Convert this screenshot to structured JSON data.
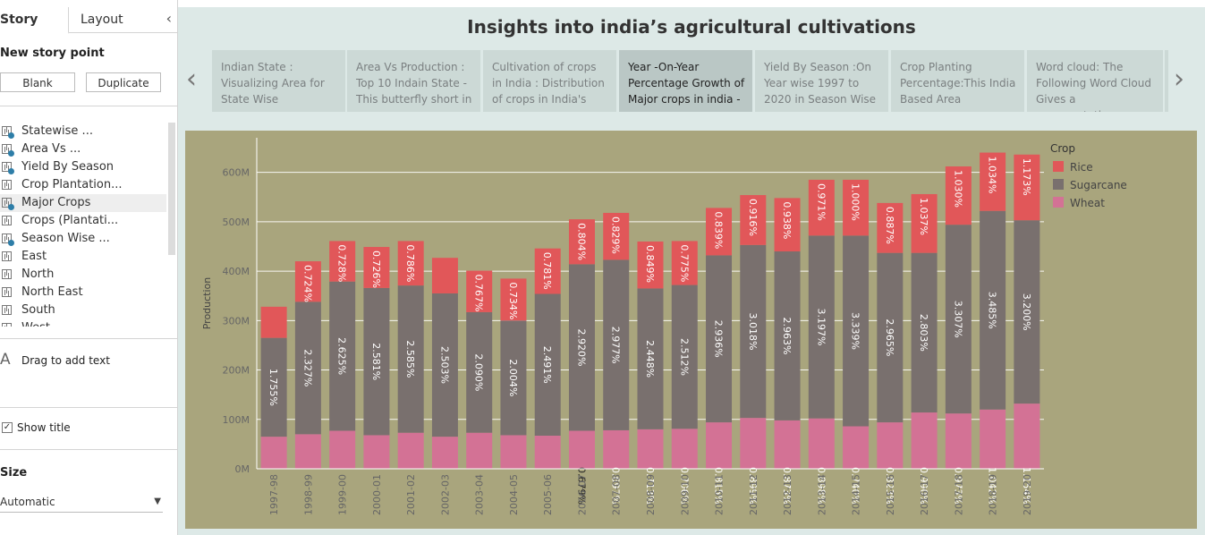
{
  "left_pane": {
    "tabs": {
      "story": "Story",
      "layout": "Layout"
    },
    "new_story_point": "New story point",
    "blank_button": "Blank",
    "duplicate_button": "Duplicate",
    "sheets": [
      {
        "label": "Statewise ...",
        "checked": true
      },
      {
        "label": "Area Vs ...",
        "checked": true
      },
      {
        "label": "Yield By Season",
        "checked": true
      },
      {
        "label": "Crop Plantation...",
        "checked": false
      },
      {
        "label": "Major Crops",
        "checked": true,
        "active": true
      },
      {
        "label": "Crops (Plantati...",
        "checked": false
      },
      {
        "label": "Season Wise ...",
        "checked": true
      },
      {
        "label": "East",
        "checked": false
      },
      {
        "label": "North",
        "checked": false
      },
      {
        "label": "North East",
        "checked": false
      },
      {
        "label": "South",
        "checked": false
      },
      {
        "label": "West",
        "checked": false
      }
    ],
    "drag_text": "Drag to add text",
    "text_icon": "A",
    "show_title": "Show title",
    "size_label": "Size",
    "size_value": "Automatic"
  },
  "story": {
    "title": "Insights into india’s agricultural cultivations",
    "story_points": [
      {
        "text": "Indian State : Visualizing Area for State Wise"
      },
      {
        "text": "Area Vs Production : Top 10 Indain State - This butterfly short in"
      },
      {
        "text": "Cultivation of crops in India : Distribution of crops in India's"
      },
      {
        "text": "Year -On-Year Percentage Growth of Major crops in india -",
        "active": true
      },
      {
        "text": "Yield By Season :On Year wise 1997 to 2020 in Season Wise"
      },
      {
        "text": "Crop Planting Percentage:This India Based Area"
      },
      {
        "text": "Word cloud: The Following Word Cloud Gives a representation"
      }
    ]
  },
  "colors": {
    "rice": "#e15759",
    "sugarcane": "#79706e",
    "wheat": "#d37295",
    "chart_bg": "#a9a57d"
  },
  "chart_data": {
    "type": "bar",
    "stacked": true,
    "ylabel": "Production",
    "ylim": [
      0,
      670
    ],
    "yticks": [
      0,
      100,
      200,
      300,
      400,
      500,
      600
    ],
    "ytick_labels": [
      "0M",
      "100M",
      "200M",
      "300M",
      "400M",
      "500M",
      "600M"
    ],
    "legend_title": "Crop",
    "legend_position": "top-right",
    "categories": [
      "1997-98",
      "1998-99",
      "1999-00",
      "2000-01",
      "2001-02",
      "2002-03",
      "2003-04",
      "2004-05",
      "2005-06",
      "2006-07",
      "2007-08",
      "2008-09",
      "2009-10",
      "2010-11",
      "2011-12",
      "2012-13",
      "2013-14",
      "2014-15",
      "2015-16",
      "2016-17",
      "2017-18",
      "2018-19",
      "2019-20"
    ],
    "series": [
      {
        "name": "Wheat",
        "values": [
          65,
          70,
          77,
          68,
          73,
          65,
          73,
          68,
          67,
          77,
          78,
          80,
          81,
          94,
          103,
          98,
          102,
          86,
          94,
          114,
          112,
          120,
          132
        ],
        "labels": [
          "",
          "",
          "",
          "",
          "",
          "",
          "",
          "",
          "",
          "0.679%",
          "0.697%",
          "0.713%",
          "0.706%",
          "0.815%",
          "0.899%",
          "0.873%",
          "0.898%",
          "0.740%",
          "0.823%",
          "0.990%",
          "0.973%",
          "1.042%",
          "1.154%"
        ]
      },
      {
        "name": "Sugarcane",
        "values": [
          200,
          268,
          302,
          298,
          298,
          290,
          244,
          232,
          287,
          337,
          345,
          285,
          291,
          338,
          350,
          342,
          370,
          386,
          343,
          323,
          382,
          402,
          371
        ],
        "labels": [
          "1.755%",
          "2.327%",
          "2.625%",
          "2.581%",
          "2.585%",
          "2.503%",
          "2.090%",
          "2.004%",
          "2.491%",
          "2.920%",
          "2.977%",
          "2.448%",
          "2.512%",
          "2.936%",
          "3.018%",
          "2.963%",
          "3.197%",
          "3.339%",
          "2.965%",
          "2.803%",
          "3.307%",
          "3.485%",
          "3.200%"
        ]
      },
      {
        "name": "Rice",
        "values": [
          63,
          82,
          82,
          83,
          90,
          72,
          84,
          85,
          92,
          91,
          95,
          95,
          89,
          96,
          101,
          108,
          113,
          113,
          101,
          119,
          118,
          118,
          133
        ],
        "labels": [
          "",
          "0.724%",
          "0.728%",
          "0.726%",
          "0.786%",
          "",
          "0.767%",
          "0.734%",
          "0.781%",
          "0.804%",
          "0.829%",
          "0.849%",
          "0.775%",
          "0.839%",
          "0.916%",
          "0.938%",
          "0.971%",
          "1.000%",
          "0.887%",
          "1.037%",
          "1.030%",
          "1.034%",
          "1.173%"
        ]
      }
    ]
  }
}
